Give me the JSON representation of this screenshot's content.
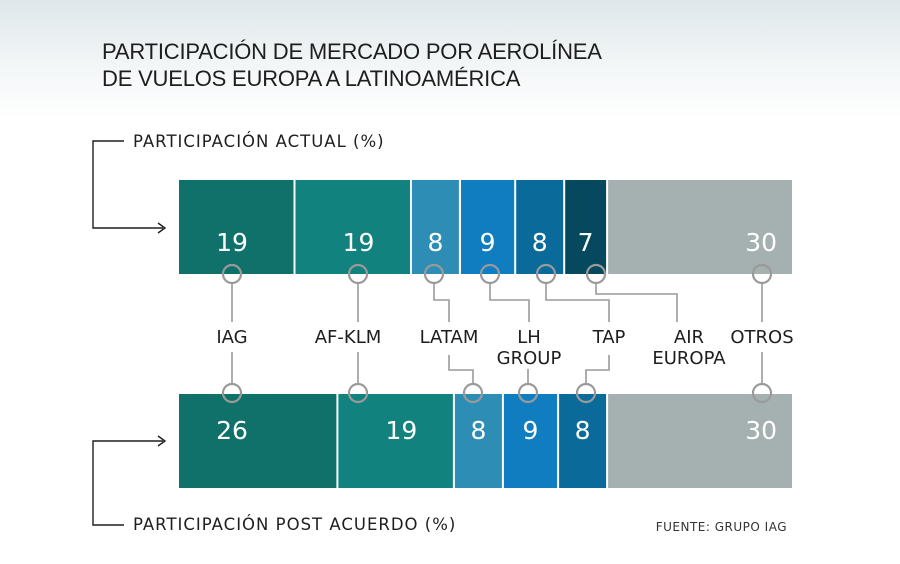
{
  "title": {
    "line1": "PARTICIPACIÓN DE MERCADO POR AEROLÍNEA",
    "line2": "DE VUELOS EUROPA A LATINOAMÉRICA"
  },
  "source": "FUENTE: GRUPO IAG",
  "colors": {
    "iag": "#10716a",
    "afklm": "#11827e",
    "latam": "#2d8db5",
    "lh": "#0f7dbf",
    "tap": "#0a6b9a",
    "aireuropa": "#06495f",
    "otros": "#a5b0b0",
    "connector": "#9a9a9a"
  },
  "chart_data": {
    "type": "bar",
    "orientation": "horizontal-stacked",
    "categories": [
      "IAG",
      "AF-KLM",
      "LATAM",
      "LH GROUP",
      "TAP",
      "AIR EUROPA",
      "OTROS"
    ],
    "category_labels": [
      [
        "IAG"
      ],
      [
        "AF-KLM"
      ],
      [
        "LATAM"
      ],
      [
        "LH",
        "GROUP"
      ],
      [
        "TAP"
      ],
      [
        "AIR",
        "EUROPA"
      ],
      [
        "OTROS"
      ]
    ],
    "series": [
      {
        "name": "PARTICIPACIÓN ACTUAL (%)",
        "values": [
          19,
          19,
          8,
          9,
          8,
          7,
          30
        ]
      },
      {
        "name": "PARTICIPACIÓN POST ACUERDO (%)",
        "values": [
          26,
          19,
          8,
          9,
          8,
          null,
          30
        ]
      }
    ],
    "unit": "%"
  }
}
